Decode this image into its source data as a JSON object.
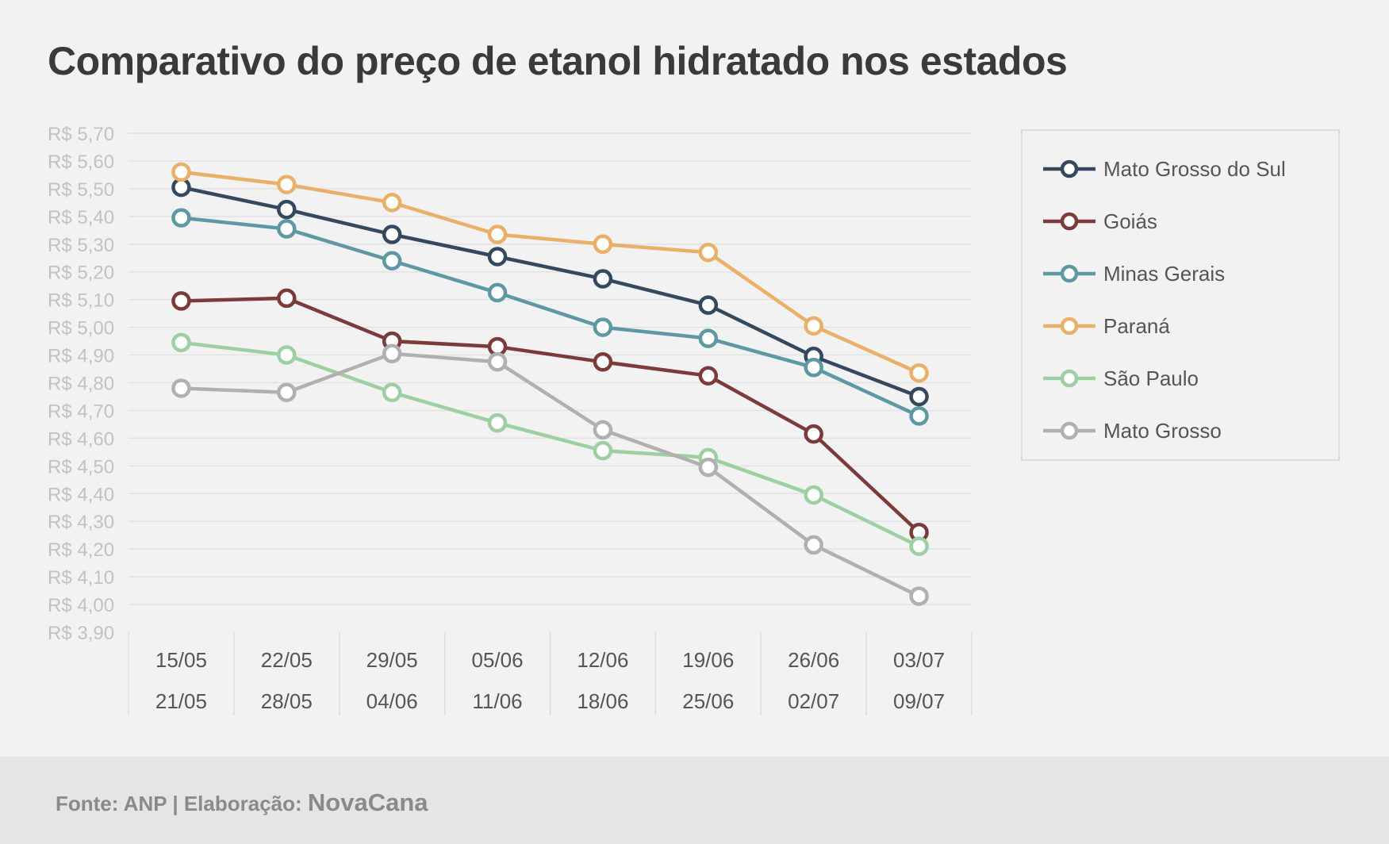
{
  "title": "Comparativo do preço de etanol hidratado nos estados",
  "chart_data": {
    "type": "line",
    "title": "Comparativo do preço de etanol hidratado nos estados",
    "categories": [
      [
        "15/05",
        "21/05"
      ],
      [
        "22/05",
        "28/05"
      ],
      [
        "29/05",
        "04/06"
      ],
      [
        "05/06",
        "11/06"
      ],
      [
        "12/06",
        "18/06"
      ],
      [
        "19/06",
        "25/06"
      ],
      [
        "26/06",
        "02/07"
      ],
      [
        "03/07",
        "09/07"
      ]
    ],
    "ylim": [
      3.9,
      5.7
    ],
    "ystep": 0.1,
    "ytick_labels": [
      "R$ 3,90",
      "R$ 4,00",
      "R$ 4,10",
      "R$ 4,20",
      "R$ 4,30",
      "R$ 4,40",
      "R$ 4,50",
      "R$ 4,60",
      "R$ 4,70",
      "R$ 4,80",
      "R$ 4,90",
      "R$ 5,00",
      "R$ 5,10",
      "R$ 5,20",
      "R$ 5,30",
      "R$ 5,40",
      "R$ 5,50",
      "R$ 5,60",
      "R$ 5,70"
    ],
    "grid": true,
    "legend_position": "right",
    "series": [
      {
        "name": "Mato Grosso do Sul",
        "color": "#34495e",
        "values": [
          5.505,
          5.425,
          5.335,
          5.255,
          5.175,
          5.08,
          4.895,
          4.75
        ]
      },
      {
        "name": "Goiás",
        "color": "#7b3b3b",
        "values": [
          5.095,
          5.105,
          4.95,
          4.93,
          4.875,
          4.825,
          4.615,
          4.26
        ]
      },
      {
        "name": "Minas Gerais",
        "color": "#5e99a3",
        "values": [
          5.395,
          5.355,
          5.24,
          5.125,
          5.0,
          4.96,
          4.855,
          4.68
        ]
      },
      {
        "name": "Paraná",
        "color": "#eab06a",
        "values": [
          5.56,
          5.515,
          5.45,
          5.335,
          5.3,
          5.27,
          5.005,
          4.835
        ]
      },
      {
        "name": "São Paulo",
        "color": "#9ecfa3",
        "values": [
          4.945,
          4.9,
          4.765,
          4.655,
          4.555,
          4.53,
          4.395,
          4.21
        ]
      },
      {
        "name": "Mato Grosso",
        "color": "#b0b0b0",
        "values": [
          4.78,
          4.765,
          4.905,
          4.875,
          4.63,
          4.495,
          4.215,
          4.03
        ]
      }
    ]
  },
  "footer": {
    "source": "Fonte: ANP | Elaboração: ",
    "brand": "NovaCana"
  }
}
